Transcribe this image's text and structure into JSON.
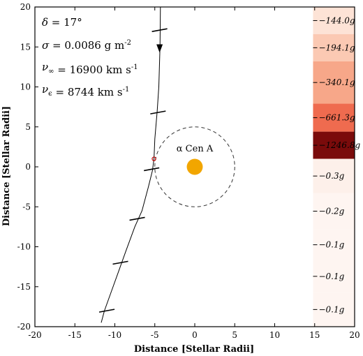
{
  "chart_data": {
    "type": "scatter",
    "xlabel": "Distance [Stellar Radii]",
    "ylabel": "Distance [Stellar Radii]",
    "xlim": [
      -20,
      20
    ],
    "ylim": [
      -20,
      20
    ],
    "xticks": [
      "-20",
      "-15",
      "-10",
      "-5",
      "0",
      "5",
      "10",
      "15",
      "20"
    ],
    "yticks": [
      "-20",
      "-15",
      "-10",
      "-5",
      "0",
      "5",
      "10",
      "15",
      "20"
    ],
    "grid": false,
    "annotations": [
      {
        "symbol": "δ",
        "sub": "",
        "rest": " = 17°"
      },
      {
        "symbol": "σ",
        "sub": "",
        "rest": " = 0.0086 g m",
        "sup": "-2"
      },
      {
        "symbol": "ν",
        "sub": "∞",
        "rest": " = 16900 km s",
        "sup": "-1"
      },
      {
        "symbol": "ν",
        "sub": "ϵ",
        "rest": " = 8744 km s",
        "sup": "-1"
      }
    ],
    "star": {
      "label": "α Cen A",
      "x": 0,
      "y": 0,
      "radius": 1,
      "color": "#f2a600",
      "ring_radius": 5
    },
    "trajectory": [
      [
        -4.3,
        20
      ],
      [
        -4.35,
        15
      ],
      [
        -4.5,
        10
      ],
      [
        -4.7,
        7
      ],
      [
        -5.0,
        3.5
      ],
      [
        -5.1,
        1.0
      ],
      [
        -5.3,
        -0.5
      ],
      [
        -5.8,
        -2.5
      ],
      [
        -6.6,
        -5.5
      ],
      [
        -7.5,
        -7.5
      ],
      [
        -8.6,
        -10.5
      ],
      [
        -9.5,
        -13
      ],
      [
        -10.4,
        -15.5
      ],
      [
        -11.3,
        -18
      ],
      [
        -11.7,
        -19.5
      ]
    ],
    "direction_marker": {
      "x": -4.4,
      "y": 14.8
    },
    "closest_point": {
      "x": -5.1,
      "y": 1.0
    },
    "time_ticks": [
      {
        "x": -4.4,
        "y": 17.1
      },
      {
        "x": -4.6,
        "y": 6.8
      },
      {
        "x": -5.4,
        "y": -0.3
      },
      {
        "x": -7.2,
        "y": -6.5
      },
      {
        "x": -9.3,
        "y": -12.0
      },
      {
        "x": -11.0,
        "y": -18.0
      }
    ],
    "acceleration_bands": [
      {
        "label": "−144.0g",
        "y_top": 20,
        "y_bottom": 16.6,
        "color": "#fde3d6"
      },
      {
        "label": "−194.1g",
        "y_top": 16.6,
        "y_bottom": 13.2,
        "color": "#fbc9b3"
      },
      {
        "label": "−340.1g",
        "y_top": 13.2,
        "y_bottom": 7.9,
        "color": "#f7a789"
      },
      {
        "label": "−661.3g",
        "y_top": 7.9,
        "y_bottom": 4.4,
        "color": "#ef6b4f"
      },
      {
        "label": "−1246.8g",
        "y_top": 4.4,
        "y_bottom": 1.0,
        "color": "#7a0b0b",
        "label_color": "#ffffff"
      },
      {
        "label": "−0.3g",
        "y_top": 1.0,
        "y_bottom": -3.3,
        "color": "#fdf0ea"
      },
      {
        "label": "−0.2g",
        "y_top": -3.3,
        "y_bottom": -7.8,
        "color": "#fef5f1"
      },
      {
        "label": "−0.1g",
        "y_top": -7.8,
        "y_bottom": -11.7,
        "color": "#fef5f1"
      },
      {
        "label": "−0.1g",
        "y_top": -11.7,
        "y_bottom": -15.7,
        "color": "#fef5f1"
      },
      {
        "label": "−0.1g",
        "y_top": -15.7,
        "y_bottom": -20,
        "color": "#fef5f1"
      }
    ],
    "band_x_start": 14.8
  }
}
